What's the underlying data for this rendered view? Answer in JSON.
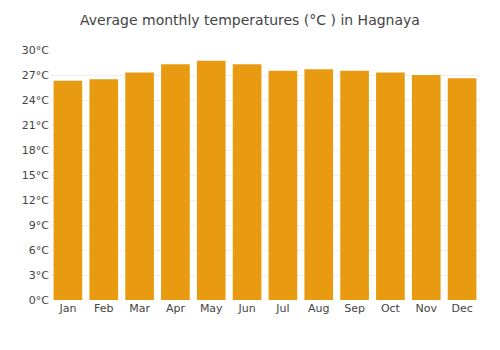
{
  "chart_data": {
    "type": "bar",
    "title": "Average monthly temperatures (°C ) in Hagnaya",
    "categories": [
      "Jan",
      "Feb",
      "Mar",
      "Apr",
      "May",
      "Jun",
      "Jul",
      "Aug",
      "Sep",
      "Oct",
      "Nov",
      "Dec"
    ],
    "values": [
      26.3,
      26.5,
      27.3,
      28.3,
      28.7,
      28.3,
      27.5,
      27.7,
      27.5,
      27.3,
      27.0,
      26.6
    ],
    "color": "#E89B10",
    "ylim": [
      0,
      30
    ],
    "yticks": [
      {
        "value": 0,
        "label": "0°C"
      },
      {
        "value": 3,
        "label": "3°C"
      },
      {
        "value": 6,
        "label": "6°C"
      },
      {
        "value": 9,
        "label": "9°C"
      },
      {
        "value": 12,
        "label": "12°C"
      },
      {
        "value": 15,
        "label": "15°C"
      },
      {
        "value": 18,
        "label": "18°C"
      },
      {
        "value": 21,
        "label": "21°C"
      },
      {
        "value": 24,
        "label": "24°C"
      },
      {
        "value": 27,
        "label": "27°C"
      },
      {
        "value": 30,
        "label": "30°C"
      }
    ],
    "grid": true
  }
}
